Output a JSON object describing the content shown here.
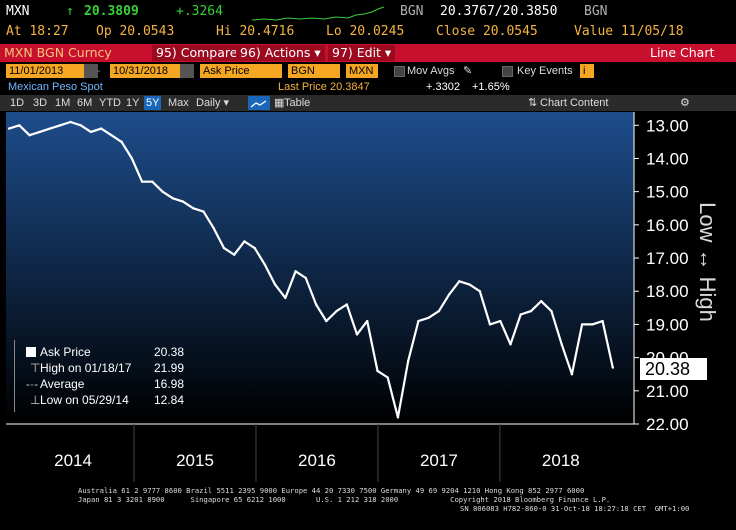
{
  "ticker_bar": {
    "symbol": "MXN",
    "arrow": "↑",
    "last": "20.3809",
    "change": "+.3264",
    "source_label": "BGN",
    "bid_ask": "20.3767/20.3850",
    "source_label2": "BGN"
  },
  "quote_bar": {
    "at": "At 18:27",
    "open": "Op 20.0543",
    "high": "Hi 20.4716",
    "low": "Lo 20.0245",
    "close": "Close 20.0545",
    "value": "Value 11/05/18"
  },
  "title_bar": {
    "security": "MXN BGN Curncy",
    "compare": "95) Compare",
    "actions": "96) Actions ▾",
    "edit": "97) Edit ▾",
    "view_name": "Line Chart"
  },
  "controls": {
    "start_date": "11/01/2013",
    "end_date": "10/31/2018",
    "field": "Ask Price",
    "source": "BGN",
    "currency": "MXN",
    "mov_avgs": "Mov Avgs",
    "key_events": "Key Events"
  },
  "subtitle": {
    "name": "Mexican Peso Spot",
    "last_price": "Last Price 20.3847",
    "net_change": "+.3302",
    "pct_change": "+1.65%"
  },
  "toolbar": {
    "periods": [
      "1D",
      "3D",
      "1M",
      "6M",
      "YTD",
      "1Y",
      "5Y",
      "Max"
    ],
    "selected_period": "5Y",
    "frequency": "Daily ▾",
    "table": "Table",
    "chart_content": "Chart Content"
  },
  "legend": {
    "rows": [
      {
        "label": "Ask Price",
        "value": "20.38"
      },
      {
        "label": "High on 01/18/17",
        "value": "21.99"
      },
      {
        "label": "Average",
        "value": "16.98"
      },
      {
        "label": "Low on 05/29/14",
        "value": "12.84"
      }
    ]
  },
  "last_badge": "20.38",
  "side_label": "Low ↔ High",
  "footer": {
    "line1": "Australia 61 2 9777 8600 Brazil 5511 2395 9000 Europe 44 20 7330 7500 Germany 49 69 9204 1210 Hong Kong 852 2977 6000",
    "line2": "Japan 81 3 3201 8900      Singapore 65 6212 1000       U.S. 1 212 318 2000            Copyright 2018 Bloomberg Finance L.P.",
    "line3": "SN 806083 H782-860-0 31-Oct-18 18:27:18 CET  GMT+1:00"
  },
  "colors": {
    "title_bar": "#c8102e",
    "accent_amber": "#f5a623",
    "up_green": "#38d038",
    "plot_bg_top": "#1d4d8c",
    "line": "#ffffff"
  },
  "chart_data": {
    "type": "line",
    "series": [
      {
        "name": "Ask Price",
        "x": [
          "2013-11",
          "2013-12",
          "2014-01",
          "2014-02",
          "2014-03",
          "2014-04",
          "2014-05",
          "2014-06",
          "2014-07",
          "2014-08",
          "2014-09",
          "2014-10",
          "2014-11",
          "2014-12",
          "2015-01",
          "2015-02",
          "2015-03",
          "2015-04",
          "2015-05",
          "2015-06",
          "2015-07",
          "2015-08",
          "2015-09",
          "2015-10",
          "2015-11",
          "2015-12",
          "2016-01",
          "2016-02",
          "2016-03",
          "2016-04",
          "2016-05",
          "2016-06",
          "2016-07",
          "2016-08",
          "2016-09",
          "2016-10",
          "2016-11",
          "2016-12",
          "2017-01",
          "2017-02",
          "2017-03",
          "2017-04",
          "2017-05",
          "2017-06",
          "2017-07",
          "2017-08",
          "2017-09",
          "2017-10",
          "2017-11",
          "2017-12",
          "2018-01",
          "2018-02",
          "2018-03",
          "2018-04",
          "2018-05",
          "2018-06",
          "2018-07",
          "2018-08",
          "2018-09",
          "2018-10"
        ],
        "values": [
          13.1,
          13.0,
          13.3,
          13.2,
          13.1,
          13.0,
          12.9,
          13.0,
          13.2,
          13.1,
          13.3,
          13.5,
          14.0,
          14.7,
          14.7,
          15.0,
          15.2,
          15.3,
          15.5,
          15.6,
          16.1,
          16.7,
          16.9,
          16.5,
          16.7,
          17.2,
          17.8,
          18.2,
          17.4,
          17.6,
          18.4,
          18.9,
          18.6,
          18.4,
          19.3,
          18.9,
          20.4,
          20.6,
          21.8,
          20.1,
          18.9,
          18.8,
          18.6,
          18.1,
          17.7,
          17.8,
          18.0,
          19.0,
          18.9,
          19.6,
          18.7,
          18.6,
          18.3,
          18.6,
          19.6,
          20.5,
          19.0,
          19.0,
          18.9,
          20.3
        ]
      }
    ],
    "xticks": [
      "2014",
      "2015",
      "2016",
      "2017",
      "2018"
    ],
    "ylim": [
      22.0,
      12.6
    ],
    "yticks": [
      "13.00",
      "14.00",
      "15.00",
      "16.00",
      "17.00",
      "18.00",
      "19.00",
      "20.00",
      "21.00",
      "22.00"
    ],
    "inverted_y": true,
    "grid": false,
    "legend": "bottom-left"
  }
}
